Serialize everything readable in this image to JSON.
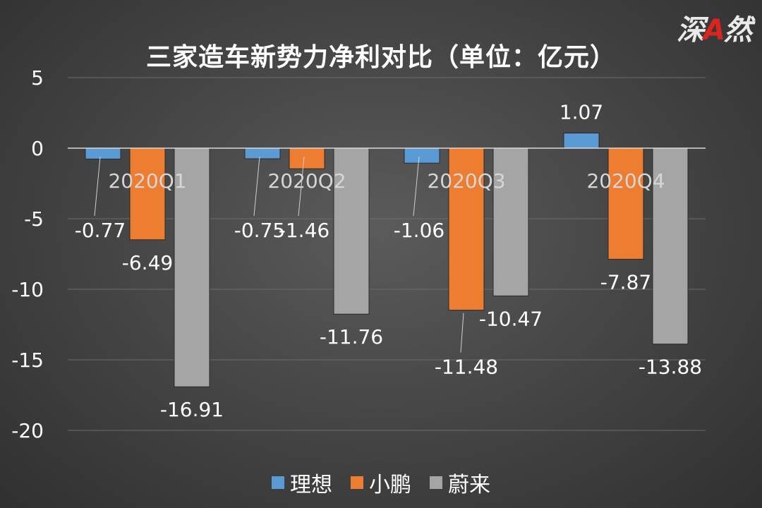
{
  "watermark": {
    "part1": "深",
    "accent": "A",
    "part2": "然"
  },
  "chart_data": {
    "type": "bar",
    "title": "三家造车新势力净利对比（单位：亿元）",
    "xlabel": "",
    "ylabel": "",
    "categories": [
      "2020Q1",
      "2020Q2",
      "2020Q3",
      "2020Q4"
    ],
    "series": [
      {
        "name": "理想",
        "color": "#5b9bd5",
        "values": [
          -0.77,
          -0.75,
          -1.06,
          1.07
        ],
        "labels": [
          "-0.77",
          "-0.75",
          "-1.06",
          "1.07"
        ]
      },
      {
        "name": "小鹏",
        "color": "#ed7d31",
        "values": [
          -6.49,
          -1.46,
          -11.48,
          -7.87
        ],
        "labels": [
          "-6.49",
          "-1.46",
          "-11.48",
          "-7.87"
        ]
      },
      {
        "name": "蔚来",
        "color": "#a5a5a5",
        "values": [
          -16.91,
          -11.76,
          -10.47,
          -13.88
        ],
        "labels": [
          "-16.91",
          "-11.76",
          "-10.47",
          "-13.88"
        ]
      }
    ],
    "ylim": [
      -20,
      5
    ],
    "yticks": [
      5,
      0,
      -5,
      -10,
      -15,
      -20
    ],
    "grid": true,
    "legend_position": "bottom"
  }
}
